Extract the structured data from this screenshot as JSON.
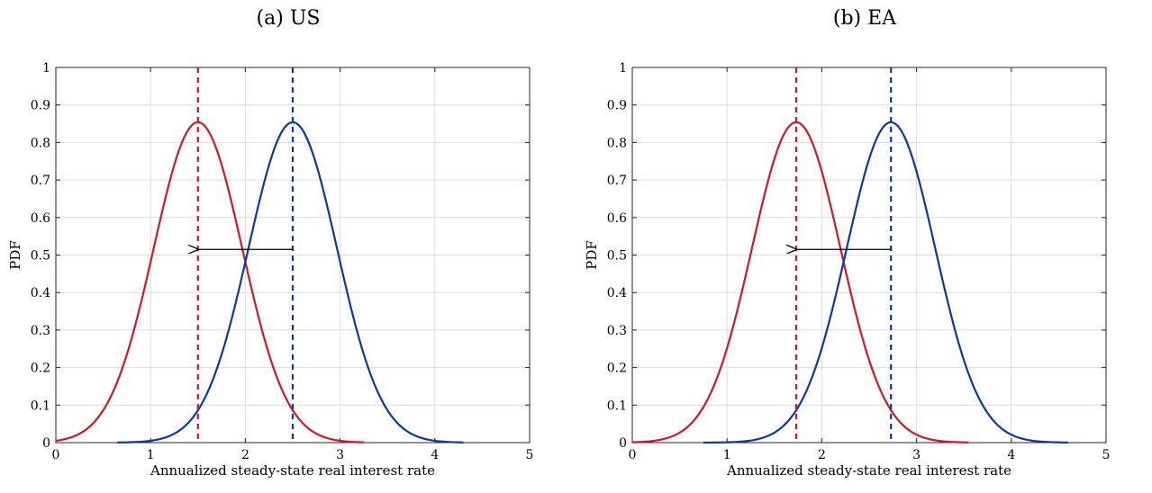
{
  "colors": {
    "red": "#d7152a",
    "blue": "#0c37a6",
    "grid": "#dcdcdc",
    "axis": "#262626",
    "arrow": "#000000"
  },
  "chart_data": [
    {
      "type": "line",
      "title": "(a) US",
      "xlabel": "Annualized steady-state real interest rate",
      "ylabel": "PDF",
      "xlim": [
        0,
        5
      ],
      "ylim": [
        0,
        1
      ],
      "xticks": [
        "0",
        "1",
        "2",
        "3",
        "4",
        "5"
      ],
      "yticks": [
        "0",
        "0.1",
        "0.2",
        "0.3",
        "0.4",
        "0.5",
        "0.6",
        "0.7",
        "0.8",
        "0.9",
        "1"
      ],
      "grid": true,
      "series": [
        {
          "color": "red",
          "mean": 1.5,
          "sd": 0.467,
          "x_range": [
            0,
            3.25
          ]
        },
        {
          "color": "blue",
          "mean": 2.5,
          "sd": 0.467,
          "x_range": [
            0.65,
            4.3
          ]
        }
      ],
      "vlines": [
        {
          "x": 1.5,
          "color": "red",
          "style": "dashed"
        },
        {
          "x": 2.5,
          "color": "blue",
          "style": "dashed"
        }
      ],
      "arrow": {
        "from": [
          2.5,
          0.515
        ],
        "to": [
          1.5,
          0.515
        ]
      }
    },
    {
      "type": "line",
      "title": "(b) EA",
      "xlabel": "Annualized steady-state real interest rate",
      "ylabel": "PDF",
      "xlim": [
        0,
        5
      ],
      "ylim": [
        0,
        1
      ],
      "xticks": [
        "0",
        "1",
        "2",
        "3",
        "4",
        "5"
      ],
      "yticks": [
        "0",
        "0.1",
        "0.2",
        "0.3",
        "0.4",
        "0.5",
        "0.6",
        "0.7",
        "0.8",
        "0.9",
        "1"
      ],
      "grid": true,
      "series": [
        {
          "color": "red",
          "mean": 1.73,
          "sd": 0.467,
          "x_range": [
            0,
            3.55
          ]
        },
        {
          "color": "blue",
          "mean": 2.73,
          "sd": 0.467,
          "x_range": [
            0.75,
            4.6
          ]
        }
      ],
      "vlines": [
        {
          "x": 1.73,
          "color": "red",
          "style": "dashed"
        },
        {
          "x": 2.73,
          "color": "blue",
          "style": "dashed"
        }
      ],
      "arrow": {
        "from": [
          2.73,
          0.515
        ],
        "to": [
          1.73,
          0.515
        ]
      }
    }
  ]
}
